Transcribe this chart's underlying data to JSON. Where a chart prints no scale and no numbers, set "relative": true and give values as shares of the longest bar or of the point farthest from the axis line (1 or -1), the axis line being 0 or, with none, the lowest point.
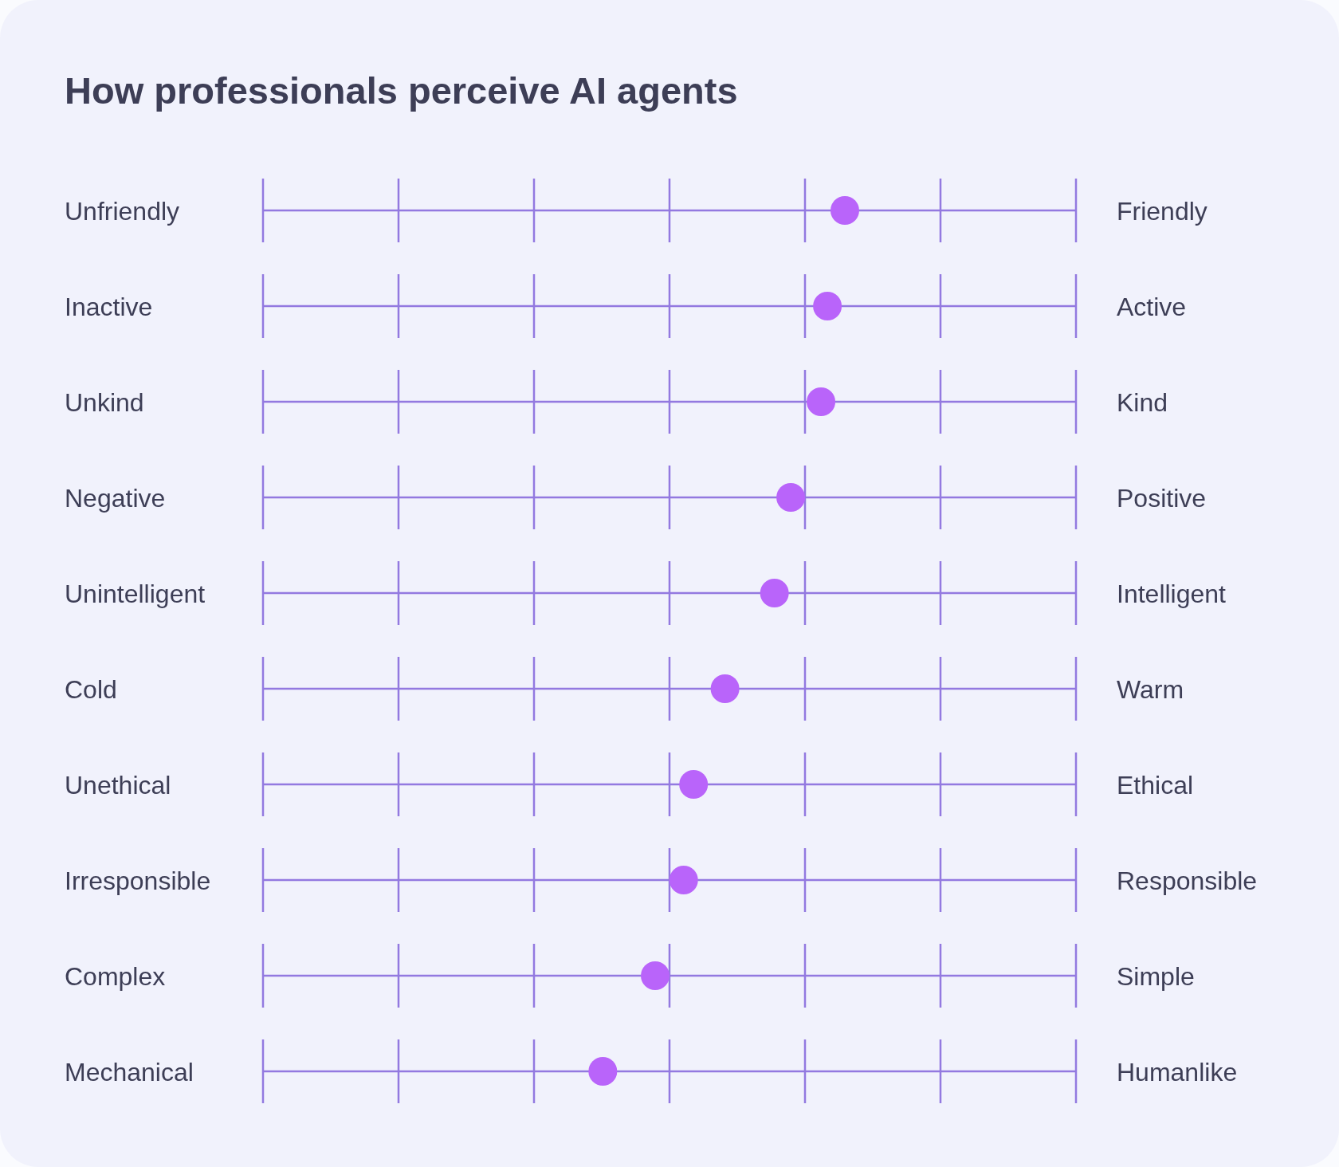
{
  "chart_data": {
    "type": "scatter",
    "orientation": "horizontal",
    "relative": true,
    "title": "How professionals perceive AI agents",
    "categories": [
      "Unfriendly",
      "Inactive",
      "Unkind",
      "Negative",
      "Unintelligent",
      "Cold",
      "Unethical",
      "Irresponsible",
      "Complex",
      "Mechanical"
    ],
    "y2_categories": [
      "Friendly",
      "Active",
      "Kind",
      "Positive",
      "Intelligent",
      "Warm",
      "Ethical",
      "Responsible",
      "Simple",
      "Humanlike"
    ],
    "values": [
      1,
      0.97,
      0.959,
      0.907,
      0.879,
      0.794,
      0.74,
      0.723,
      0.674,
      0.584
    ],
    "color": "#b964fa",
    "marker": "circle",
    "grid": "y",
    "tick_labels": "y"
  }
}
